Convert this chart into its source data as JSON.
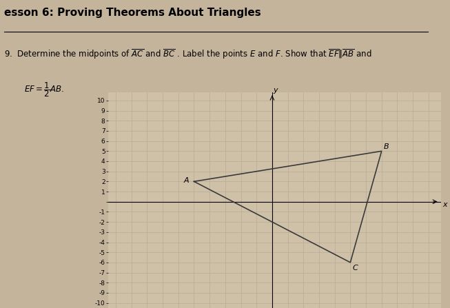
{
  "A": [
    -5,
    2
  ],
  "B": [
    7,
    5
  ],
  "C": [
    5,
    -6
  ],
  "axis_xlim": [
    -10.5,
    10.8
  ],
  "axis_ylim": [
    -10.5,
    10.8
  ],
  "triangle_color": "#3a3a3a",
  "background_color": "#cfc0a8",
  "grid_color": "#b8aa95",
  "text_bg": "#c8b89a",
  "label_fontsize": 8,
  "axis_label_fontsize": 8,
  "tick_fontsize": 6.5,
  "fig_bg": "#c5b49c",
  "title_text": "esson 6: Proving Theorems About Triangles",
  "line1_text": "9.  Determine the midpoints of $\\overline{AC}$ and $\\overline{BC}$ . Label the points $E$ and $F$. Show that $\\overline{EF}\\|\\overline{AB}$ and",
  "line2_text": "$EF=\\dfrac{1}{2}AB$."
}
